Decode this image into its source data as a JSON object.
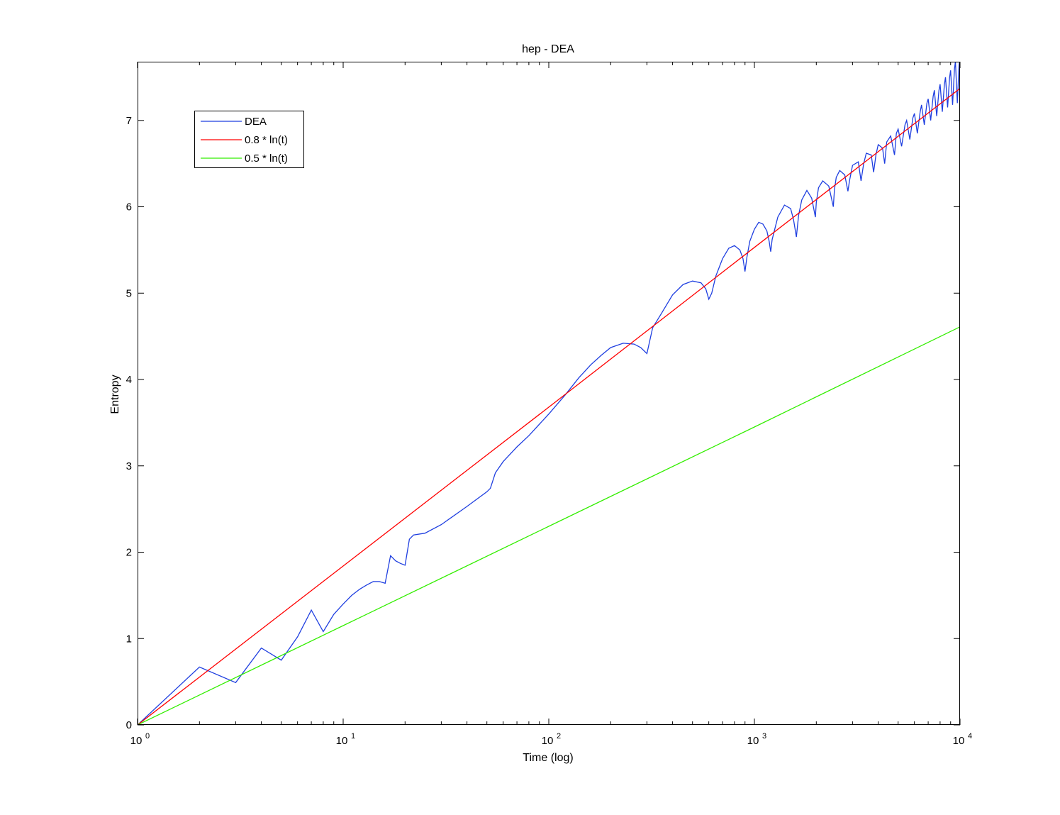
{
  "chart_data": {
    "type": "line",
    "title": "hep - DEA",
    "xlabel": "Time (log)",
    "ylabel": "Entropy",
    "xscale": "log",
    "xlim": [
      1,
      10000
    ],
    "ylim": [
      0,
      7.68
    ],
    "xticks": [
      {
        "value": 1,
        "base": "10",
        "exp": "0"
      },
      {
        "value": 10,
        "base": "10",
        "exp": "1"
      },
      {
        "value": 100,
        "base": "10",
        "exp": "2"
      },
      {
        "value": 1000,
        "base": "10",
        "exp": "3"
      },
      {
        "value": 10000,
        "base": "10",
        "exp": "4"
      }
    ],
    "yticks": [
      0,
      1,
      2,
      3,
      4,
      5,
      6,
      7
    ],
    "grid": false,
    "legend_position": "top-left",
    "series": [
      {
        "name": "DEA",
        "color": "#1f3fe0",
        "x": [
          1,
          2,
          3,
          4,
          5,
          6,
          7,
          8,
          9,
          10,
          11,
          12,
          13,
          14,
          15,
          16,
          17,
          18,
          19,
          20,
          21,
          22,
          25,
          30,
          40,
          50,
          52,
          55,
          60,
          70,
          80,
          100,
          120,
          140,
          160,
          180,
          200,
          230,
          260,
          280,
          300,
          320,
          350,
          400,
          450,
          500,
          550,
          580,
          600,
          620,
          650,
          700,
          750,
          800,
          850,
          880,
          900,
          920,
          950,
          1000,
          1050,
          1100,
          1150,
          1180,
          1200,
          1220,
          1300,
          1400,
          1500,
          1550,
          1600,
          1640,
          1700,
          1800,
          1900,
          1980,
          2000,
          2050,
          2150,
          2300,
          2420,
          2450,
          2500,
          2600,
          2750,
          2850,
          2900,
          3000,
          3200,
          3300,
          3400,
          3500,
          3700,
          3800,
          3900,
          4000,
          4200,
          4300,
          4400,
          4600,
          4800,
          4900,
          5000,
          5200,
          5400,
          5500,
          5700,
          5900,
          6000,
          6200,
          6400,
          6500,
          6700,
          6900,
          7000,
          7200,
          7400,
          7500,
          7700,
          7900,
          8000,
          8200,
          8400,
          8500,
          8700,
          8900,
          9000,
          9200,
          9400,
          9500,
          9700,
          9900,
          10000
        ],
        "values": [
          0.0,
          0.67,
          0.49,
          0.89,
          0.75,
          1.02,
          1.33,
          1.08,
          1.28,
          1.4,
          1.5,
          1.57,
          1.62,
          1.66,
          1.66,
          1.64,
          1.96,
          1.9,
          1.87,
          1.85,
          2.15,
          2.2,
          2.22,
          2.32,
          2.53,
          2.7,
          2.74,
          2.92,
          3.05,
          3.22,
          3.35,
          3.6,
          3.82,
          4.02,
          4.17,
          4.28,
          4.37,
          4.42,
          4.41,
          4.37,
          4.3,
          4.6,
          4.75,
          4.98,
          5.1,
          5.14,
          5.12,
          5.05,
          4.93,
          5.0,
          5.2,
          5.4,
          5.52,
          5.55,
          5.5,
          5.4,
          5.25,
          5.42,
          5.6,
          5.74,
          5.82,
          5.8,
          5.72,
          5.6,
          5.48,
          5.62,
          5.88,
          6.02,
          5.98,
          5.85,
          5.65,
          5.9,
          6.08,
          6.19,
          6.1,
          5.88,
          6.05,
          6.22,
          6.3,
          6.24,
          6.0,
          6.2,
          6.34,
          6.42,
          6.37,
          6.18,
          6.3,
          6.48,
          6.52,
          6.3,
          6.5,
          6.62,
          6.6,
          6.4,
          6.6,
          6.72,
          6.68,
          6.5,
          6.75,
          6.82,
          6.6,
          6.85,
          6.9,
          6.7,
          6.95,
          7.0,
          6.78,
          7.03,
          7.08,
          6.85,
          7.1,
          7.18,
          6.95,
          7.2,
          7.25,
          7.0,
          7.28,
          7.35,
          7.05,
          7.35,
          7.42,
          7.1,
          7.42,
          7.5,
          7.15,
          7.5,
          7.58,
          7.18,
          7.6,
          7.68,
          7.2,
          7.65,
          7.7
        ]
      },
      {
        "name": "0.8 * ln(t)",
        "color": "#ff0000",
        "formula_coef": 0.8,
        "x": [
          1,
          10,
          100,
          1000,
          10000
        ],
        "values": [
          0,
          1.84,
          3.68,
          5.53,
          7.37
        ]
      },
      {
        "name": "0.5 * ln(t)",
        "color": "#33ee00",
        "formula_coef": 0.5,
        "x": [
          1,
          10,
          100,
          1000,
          10000
        ],
        "values": [
          0,
          1.15,
          2.3,
          3.45,
          4.61
        ]
      }
    ]
  }
}
